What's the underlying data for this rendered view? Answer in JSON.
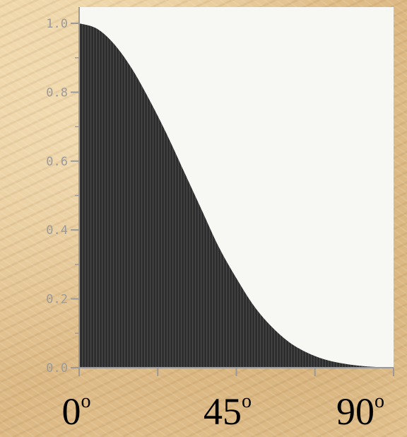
{
  "chart_data": {
    "type": "area",
    "title": "",
    "xlabel": "",
    "ylabel": "",
    "xlim": [
      0,
      90
    ],
    "ylim": [
      0,
      1.0
    ],
    "grid": false,
    "yticks": [
      "0.0",
      "0.2",
      "0.4",
      "0.6",
      "0.8",
      "1.0"
    ],
    "xticks": [
      {
        "value": 0,
        "number": "0",
        "unit": "o"
      },
      {
        "value": 45,
        "number": "45",
        "unit": "o"
      },
      {
        "value": 90,
        "number": "90",
        "unit": "o"
      }
    ],
    "series": [
      {
        "x": [
          0,
          5,
          10,
          15,
          20,
          25,
          30,
          35,
          40,
          45,
          50,
          55,
          60,
          65,
          70,
          75,
          80,
          85,
          90
        ],
        "values": [
          1.0,
          0.985,
          0.94,
          0.87,
          0.78,
          0.68,
          0.57,
          0.46,
          0.35,
          0.26,
          0.18,
          0.12,
          0.075,
          0.045,
          0.025,
          0.013,
          0.006,
          0.002,
          0.0
        ]
      }
    ],
    "colors": {
      "fill": "#2b2b2b",
      "plot_background": "#f7f7f3",
      "axis": "#9a9a9a",
      "page_background": "#e4c592"
    }
  }
}
